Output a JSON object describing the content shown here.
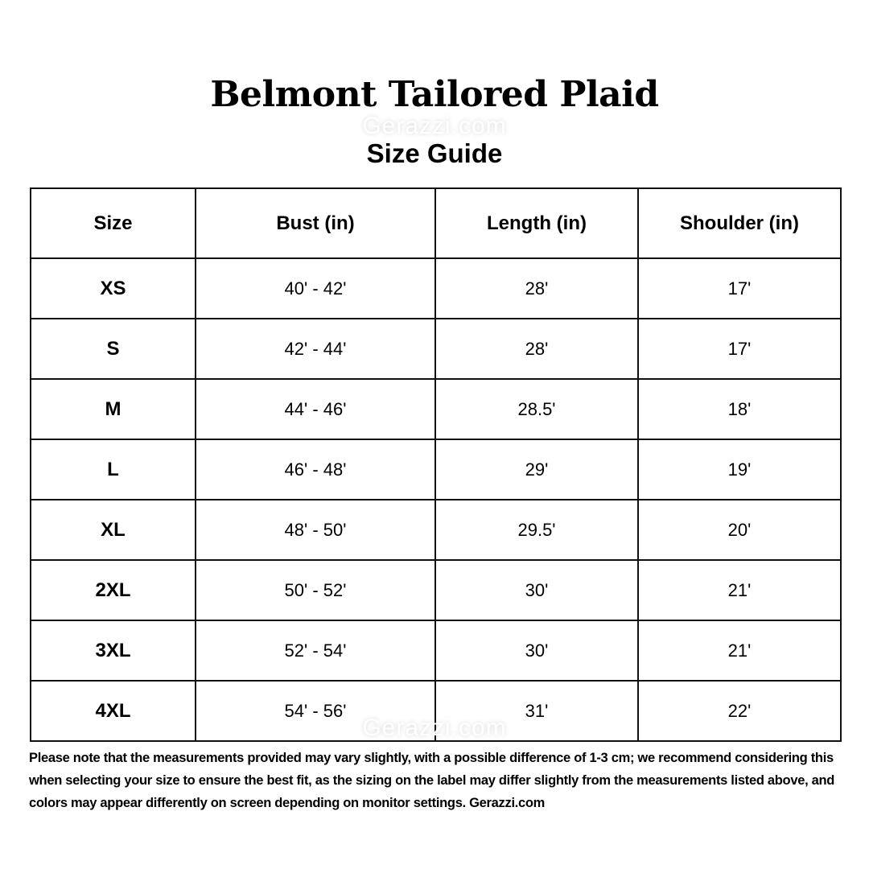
{
  "title": "Belmont Tailored Plaid",
  "subtitle": "Size Guide",
  "watermark": "Gerazzi.com",
  "table": {
    "headers": [
      "Size",
      "Bust (in)",
      "Length (in)",
      "Shoulder (in)"
    ],
    "rows": [
      [
        "XS",
        "40' - 42'",
        "28'",
        "17'"
      ],
      [
        "S",
        "42' - 44'",
        "28'",
        "17'"
      ],
      [
        "M",
        "44' - 46'",
        "28.5'",
        "18'"
      ],
      [
        "L",
        "46' - 48'",
        "29'",
        "19'"
      ],
      [
        "XL",
        "48' - 50'",
        "29.5'",
        "20'"
      ],
      [
        "2XL",
        "50' - 52'",
        "30'",
        "21'"
      ],
      [
        "3XL",
        "52' - 54'",
        "30'",
        "21'"
      ],
      [
        "4XL",
        "54' - 56'",
        "31'",
        "22'"
      ]
    ]
  },
  "note": "Please note that the measurements provided may vary slightly, with a possible difference of 1-3 cm; we recommend considering this when selecting your size to ensure the best fit, as the sizing on the label may differ slightly from the measurements listed above, and colors may appear differently on screen depending on monitor settings. Gerazzi.com"
}
